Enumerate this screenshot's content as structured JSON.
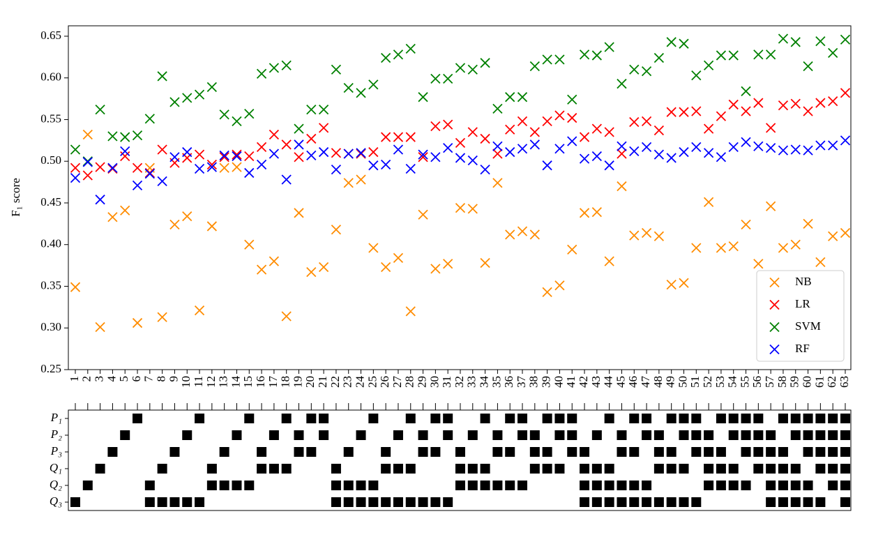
{
  "chart_data": [
    {
      "type": "scatter",
      "y_label": "F₁ score",
      "categories": [
        "1",
        "2",
        "3",
        "4",
        "5",
        "6",
        "7",
        "8",
        "9",
        "10",
        "11",
        "12",
        "13",
        "14",
        "15",
        "16",
        "17",
        "18",
        "19",
        "20",
        "21",
        "22",
        "23",
        "24",
        "25",
        "26",
        "27",
        "28",
        "29",
        "30",
        "31",
        "32",
        "33",
        "34",
        "35",
        "36",
        "37",
        "38",
        "39",
        "40",
        "41",
        "42",
        "43",
        "44",
        "45",
        "46",
        "47",
        "48",
        "49",
        "50",
        "51",
        "52",
        "53",
        "54",
        "55",
        "56",
        "57",
        "58",
        "59",
        "60",
        "61",
        "62",
        "63"
      ],
      "ylim": [
        0.25,
        0.6625
      ],
      "yticks": [
        0.25,
        {
          "value": 0.3,
          "label": "0.30"
        },
        0.35,
        {
          "value": 0.4,
          "label": "0.40"
        },
        0.45,
        {
          "value": 0.5,
          "label": "0.50"
        },
        0.55,
        {
          "value": 0.6,
          "label": "0.60"
        },
        0.65
      ],
      "legend": "lower right",
      "series": [
        {
          "name": "NB",
          "color": "#ff8c00",
          "values": [
            0.349,
            0.532,
            0.301,
            0.433,
            0.441,
            0.306,
            0.492,
            0.313,
            0.424,
            0.434,
            0.321,
            0.422,
            0.492,
            0.493,
            0.4,
            0.37,
            0.38,
            0.314,
            0.438,
            0.367,
            0.373,
            0.418,
            0.474,
            0.478,
            0.396,
            0.373,
            0.384,
            0.32,
            0.436,
            0.371,
            0.377,
            0.444,
            0.443,
            0.378,
            0.474,
            0.412,
            0.416,
            0.412,
            0.343,
            0.351,
            0.394,
            0.438,
            0.439,
            0.38,
            0.47,
            0.411,
            0.414,
            0.41,
            0.352,
            0.354,
            0.396,
            0.451,
            0.396,
            0.398,
            0.424,
            0.377,
            0.446,
            0.396,
            0.4,
            0.425,
            0.379,
            0.41,
            0.414
          ]
        },
        {
          "name": "LR",
          "color": "#ff0000",
          "values": [
            0.492,
            0.483,
            0.493,
            0.491,
            0.506,
            0.492,
            0.486,
            0.514,
            0.498,
            0.504,
            0.508,
            0.496,
            0.505,
            0.508,
            0.506,
            0.517,
            0.532,
            0.52,
            0.505,
            0.527,
            0.54,
            0.51,
            0.509,
            0.509,
            0.511,
            0.529,
            0.529,
            0.529,
            0.505,
            0.542,
            0.544,
            0.522,
            0.535,
            0.527,
            0.509,
            0.538,
            0.548,
            0.535,
            0.548,
            0.555,
            0.552,
            0.529,
            0.539,
            0.535,
            0.509,
            0.547,
            0.548,
            0.537,
            0.559,
            0.559,
            0.56,
            0.539,
            0.554,
            0.568,
            0.56,
            0.57,
            0.54,
            0.567,
            0.569,
            0.56,
            0.57,
            0.572,
            0.582
          ]
        },
        {
          "name": "SVM",
          "color": "#008000",
          "values": [
            0.514,
            0.5,
            0.562,
            0.53,
            0.529,
            0.531,
            0.551,
            0.602,
            0.571,
            0.576,
            0.58,
            0.589,
            0.556,
            0.548,
            0.557,
            0.605,
            0.612,
            0.615,
            0.539,
            0.562,
            0.562,
            0.61,
            0.588,
            0.582,
            0.592,
            0.624,
            0.628,
            0.635,
            0.577,
            0.599,
            0.599,
            0.612,
            0.61,
            0.618,
            0.563,
            0.577,
            0.577,
            0.614,
            0.622,
            0.622,
            0.574,
            0.628,
            0.627,
            0.637,
            0.593,
            0.61,
            0.608,
            0.624,
            0.643,
            0.641,
            0.603,
            0.615,
            0.627,
            0.627,
            0.584,
            0.628,
            0.628,
            0.647,
            0.643,
            0.614,
            0.644,
            0.63,
            0.646
          ]
        },
        {
          "name": "RF",
          "color": "#0000ff",
          "values": [
            0.48,
            0.499,
            0.454,
            0.492,
            0.512,
            0.471,
            0.485,
            0.476,
            0.505,
            0.511,
            0.491,
            0.493,
            0.507,
            0.506,
            0.486,
            0.496,
            0.509,
            0.478,
            0.52,
            0.507,
            0.511,
            0.49,
            0.509,
            0.51,
            0.495,
            0.496,
            0.514,
            0.491,
            0.508,
            0.505,
            0.516,
            0.504,
            0.501,
            0.49,
            0.518,
            0.511,
            0.515,
            0.52,
            0.495,
            0.515,
            0.524,
            0.503,
            0.506,
            0.495,
            0.518,
            0.512,
            0.517,
            0.508,
            0.504,
            0.511,
            0.517,
            0.51,
            0.505,
            0.517,
            0.523,
            0.518,
            0.516,
            0.513,
            0.514,
            0.513,
            0.519,
            0.519,
            0.525
          ]
        }
      ]
    },
    {
      "type": "matrix",
      "rows": [
        {
          "label": "P₁",
          "columns": [
            6,
            11,
            15,
            18,
            20,
            21,
            25,
            28,
            30,
            31,
            34,
            36,
            37,
            39,
            40,
            41,
            44,
            46,
            47,
            49,
            50,
            51,
            53,
            54,
            55,
            56,
            58,
            59,
            60,
            61,
            62,
            63
          ]
        },
        {
          "label": "P₂",
          "columns": [
            5,
            10,
            14,
            17,
            19,
            21,
            24,
            27,
            29,
            31,
            33,
            35,
            37,
            38,
            40,
            41,
            43,
            45,
            47,
            48,
            50,
            51,
            52,
            54,
            55,
            56,
            57,
            59,
            60,
            61,
            62,
            63
          ]
        },
        {
          "label": "P₃",
          "columns": [
            4,
            9,
            13,
            16,
            19,
            20,
            23,
            26,
            29,
            30,
            32,
            35,
            36,
            38,
            39,
            41,
            42,
            45,
            46,
            48,
            49,
            51,
            52,
            53,
            55,
            56,
            57,
            58,
            60,
            61,
            62,
            63
          ]
        },
        {
          "label": "Q₁",
          "columns": [
            3,
            8,
            12,
            16,
            17,
            18,
            22,
            26,
            27,
            28,
            32,
            33,
            34,
            38,
            39,
            40,
            42,
            43,
            44,
            48,
            49,
            50,
            52,
            53,
            54,
            56,
            57,
            58,
            59,
            61,
            62,
            63
          ]
        },
        {
          "label": "Q₂",
          "columns": [
            2,
            7,
            12,
            13,
            14,
            15,
            22,
            23,
            24,
            25,
            32,
            33,
            34,
            35,
            36,
            37,
            42,
            43,
            44,
            45,
            46,
            47,
            52,
            53,
            54,
            55,
            57,
            58,
            59,
            60,
            62,
            63
          ]
        },
        {
          "label": "Q₃",
          "columns": [
            1,
            7,
            8,
            9,
            10,
            11,
            22,
            23,
            24,
            25,
            26,
            27,
            28,
            29,
            30,
            31,
            42,
            43,
            44,
            45,
            46,
            47,
            48,
            49,
            50,
            51,
            57,
            58,
            59,
            60,
            61,
            63
          ]
        }
      ]
    }
  ]
}
